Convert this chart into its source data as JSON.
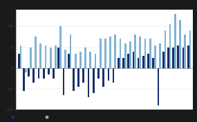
{
  "dark_values": [
    3.5,
    -5.5,
    -2.0,
    -3.5,
    -2.5,
    -2.5,
    -1.5,
    -2.5,
    5.0,
    -6.5,
    3.5,
    -5.5,
    -4.5,
    -3.5,
    -7.0,
    -6.0,
    -2.5,
    -4.5,
    -3.0,
    -3.5,
    2.5,
    2.5,
    3.5,
    4.0,
    2.5,
    3.0,
    3.5,
    2.5,
    -9.0,
    4.0,
    5.0,
    5.0,
    5.5,
    5.0,
    5.5
  ],
  "light_values": [
    5.5,
    -1.0,
    5.0,
    7.5,
    6.0,
    5.5,
    5.0,
    5.5,
    10.0,
    4.5,
    8.0,
    3.5,
    4.0,
    5.0,
    4.0,
    3.5,
    7.0,
    7.0,
    7.5,
    8.0,
    7.0,
    6.0,
    6.5,
    8.0,
    7.5,
    7.0,
    7.0,
    5.5,
    6.0,
    9.0,
    10.5,
    13.0,
    11.5,
    8.0,
    9.0
  ],
  "dark_color": "#1a2e6b",
  "light_color": "#7fb3d3",
  "figure_background": "#1a1a1a",
  "plot_background": "#ffffff",
  "bar_width": 0.38,
  "ylim": [
    -10,
    14
  ],
  "n_bars": 35
}
